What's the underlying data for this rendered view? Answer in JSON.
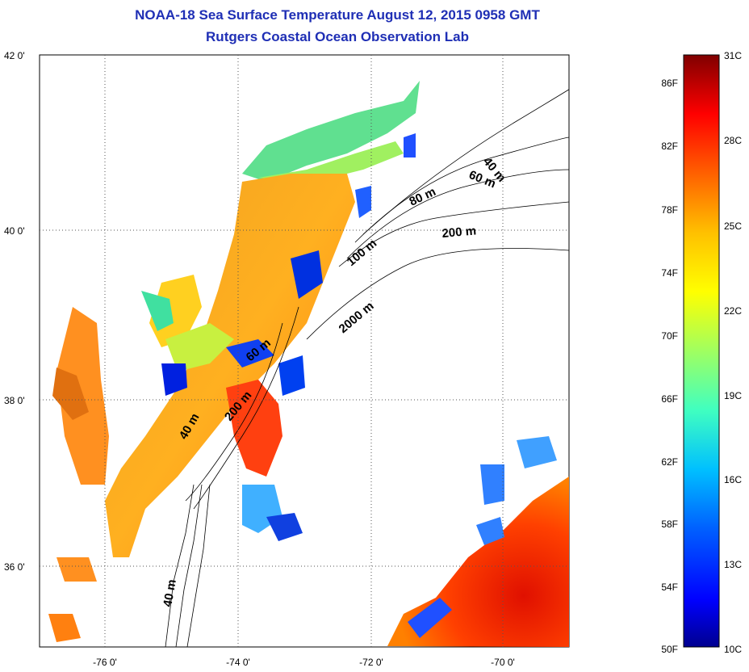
{
  "title": {
    "line1": "NOAA-18 Sea Surface Temperature August 12, 2015 0958 GMT",
    "line2": "Rutgers Coastal Ocean Observation Lab"
  },
  "map": {
    "lat_labels": [
      "42 0'",
      "40 0'",
      "38 0'",
      "36 0'"
    ],
    "lon_labels": [
      "-76 0'",
      "-74 0'",
      "-72 0'",
      "-70 0'"
    ],
    "isobath_labels": [
      "40 m",
      "60 m",
      "80 m",
      "200 m",
      "100 m",
      "2000 m",
      "60 m",
      "200 m",
      "40 m",
      "40 m"
    ]
  },
  "colorbar": {
    "fahrenheit_labels": [
      "86F",
      "82F",
      "78F",
      "74F",
      "70F",
      "66F",
      "62F",
      "58F",
      "54F",
      "50F"
    ],
    "celsius_labels": [
      "31C",
      "28C",
      "25C",
      "22C",
      "19C",
      "16C",
      "13C",
      "10C"
    ]
  },
  "colors": {
    "title": "#1f2fb5",
    "colormap": [
      "#00008f",
      "#0000ff",
      "#0060ff",
      "#00c0ff",
      "#40ffc0",
      "#a0ff60",
      "#ffff00",
      "#ffc000",
      "#ff6000",
      "#ff0000",
      "#c00000",
      "#800000"
    ]
  }
}
